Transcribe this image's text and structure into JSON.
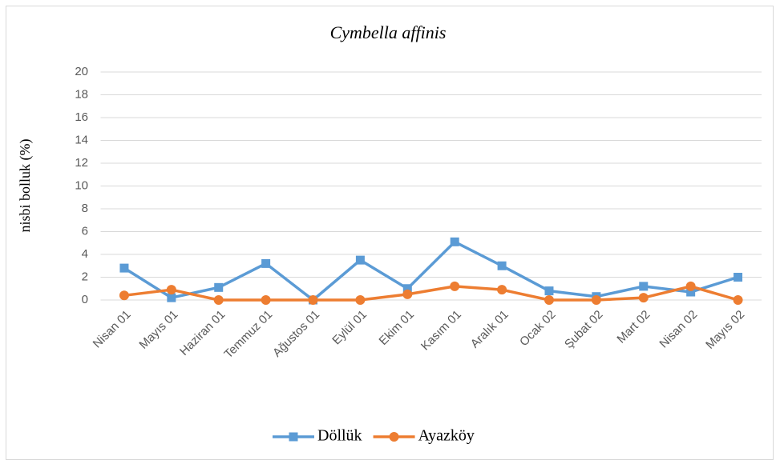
{
  "chart_data": {
    "type": "line",
    "title": "Cymbella affinis",
    "y_label": "nisbi bolluk (%)",
    "categories": [
      "Nisan 01",
      "Mayıs 01",
      "Haziran 01",
      "Temmuz 01",
      "Ağustos 01",
      "Eylül 01",
      "Ekim 01",
      "Kasım 01",
      "Aralık 01",
      "Ocak 02",
      "Şubat 02",
      "Mart 02",
      "Nisan 02",
      "Mayıs 02"
    ],
    "series": [
      {
        "name": "Döllük",
        "color": "#5b9bd5",
        "marker": "square",
        "values": [
          2.8,
          0.2,
          1.1,
          3.2,
          0,
          3.5,
          1.0,
          5.1,
          3.0,
          0.8,
          0.3,
          1.2,
          0.7,
          2.0
        ]
      },
      {
        "name": "Ayazköy",
        "color": "#ed7d31",
        "marker": "circle",
        "values": [
          0.4,
          0.9,
          0,
          0,
          0,
          0,
          0.5,
          1.2,
          0.9,
          0,
          0,
          0.2,
          1.2,
          0
        ]
      }
    ],
    "ylim": [
      0,
      20
    ],
    "yticks": [
      0,
      2,
      4,
      6,
      8,
      10,
      12,
      14,
      16,
      18,
      20
    ],
    "grid": true,
    "legend": "bottom"
  }
}
